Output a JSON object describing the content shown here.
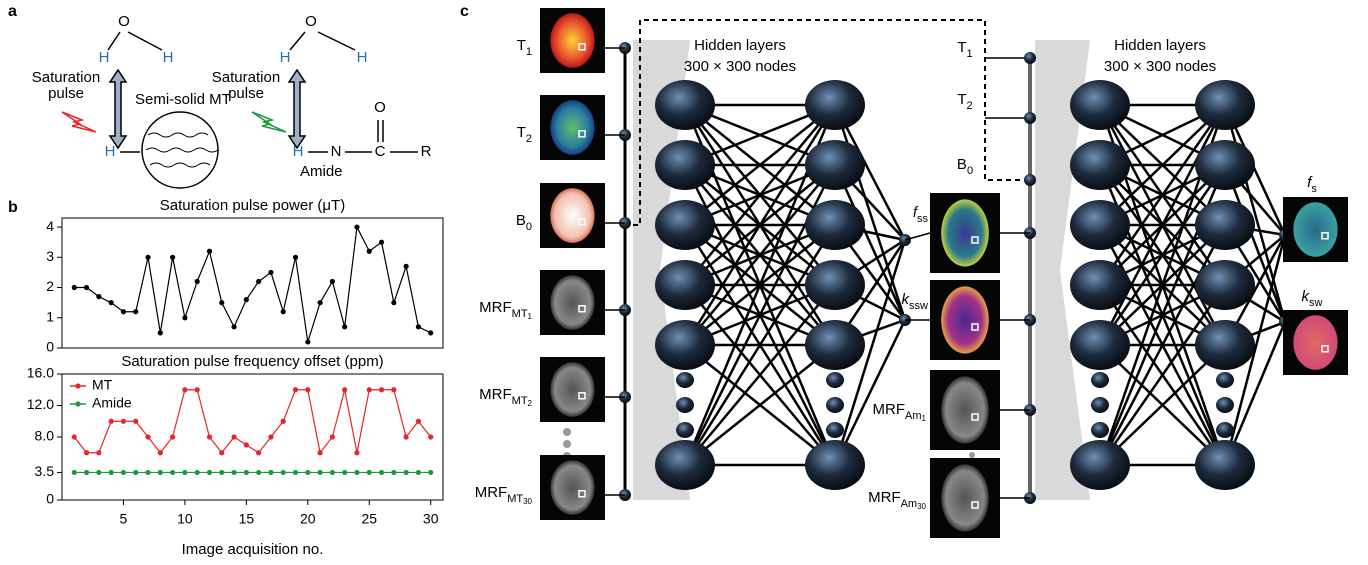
{
  "panel_labels": [
    "a",
    "b",
    "c"
  ],
  "panel_a": {
    "left": {
      "atoms": [
        "O",
        "H",
        "H",
        "H"
      ],
      "pulse_label": [
        "Saturation",
        "pulse"
      ],
      "mt_label": "Semi-solid MT"
    },
    "right": {
      "atoms": [
        "O",
        "H",
        "H",
        "H",
        "N",
        "C",
        "O",
        "R"
      ],
      "pulse_label": [
        "Saturation",
        "pulse"
      ],
      "amide_label": "Amide"
    }
  },
  "chart_data": [
    {
      "type": "line",
      "title": "Saturation pulse power (μT)",
      "x": [
        1,
        2,
        3,
        4,
        5,
        6,
        7,
        8,
        9,
        10,
        11,
        12,
        13,
        14,
        15,
        16,
        17,
        18,
        19,
        20,
        21,
        22,
        23,
        24,
        25,
        26,
        27,
        28,
        29,
        30
      ],
      "series": [
        {
          "color": "#000000",
          "values": [
            2.0,
            2.0,
            1.7,
            1.5,
            1.2,
            1.2,
            3.0,
            0.5,
            3.0,
            1.0,
            2.2,
            3.2,
            1.5,
            0.7,
            1.6,
            2.2,
            2.5,
            1.2,
            3.0,
            0.2,
            1.5,
            2.2,
            0.7,
            4.0,
            3.2,
            3.5,
            1.5,
            2.7,
            0.7,
            0.5
          ]
        }
      ],
      "xlim": [
        0,
        31
      ],
      "ylim": [
        0,
        4.3
      ],
      "yticks": [
        0,
        1,
        2,
        3,
        4
      ]
    },
    {
      "type": "line",
      "title": "Saturation pulse frequency offset (ppm)",
      "xlabel": "Image acquisition no.",
      "x": [
        1,
        2,
        3,
        4,
        5,
        6,
        7,
        8,
        9,
        10,
        11,
        12,
        13,
        14,
        15,
        16,
        17,
        18,
        19,
        20,
        21,
        22,
        23,
        24,
        25,
        26,
        27,
        28,
        29,
        30
      ],
      "series": [
        {
          "name": "MT",
          "color": "#e8262a",
          "values": [
            8,
            6,
            6,
            10,
            10,
            10,
            8,
            6,
            8,
            14,
            14,
            8,
            6,
            8,
            7,
            6,
            8,
            10,
            14,
            14,
            6,
            8,
            14,
            6,
            14,
            14,
            14,
            8,
            10,
            8
          ]
        },
        {
          "name": "Amide",
          "color": "#1a9a3a",
          "values": [
            3.5,
            3.5,
            3.5,
            3.5,
            3.5,
            3.5,
            3.5,
            3.5,
            3.5,
            3.5,
            3.5,
            3.5,
            3.5,
            3.5,
            3.5,
            3.5,
            3.5,
            3.5,
            3.5,
            3.5,
            3.5,
            3.5,
            3.5,
            3.5,
            3.5,
            3.5,
            3.5,
            3.5,
            3.5,
            3.5
          ]
        }
      ],
      "xlim": [
        0,
        31
      ],
      "ylim": [
        0,
        16
      ],
      "xticks": [
        5,
        10,
        15,
        20,
        25,
        30
      ],
      "yticks": [
        0,
        3.5,
        {
          "value": 8,
          "label": "8.0"
        },
        {
          "value": 12,
          "label": "12.0"
        },
        {
          "value": 16,
          "label": "16.0"
        }
      ]
    }
  ],
  "panel_c": {
    "inputs": [
      {
        "text": "T",
        "sub": "1"
      },
      {
        "text": "T",
        "sub": "2"
      },
      {
        "text": "B",
        "sub": "0"
      },
      {
        "text": "MRF",
        "sub": "MT",
        "sub2": "1"
      },
      {
        "text": "MRF",
        "sub": "MT",
        "sub2": "2"
      },
      {
        "text": "MRF",
        "sub": "MT",
        "sub2": "30"
      }
    ],
    "hidden_title": "Hidden layers",
    "hidden_size": "300 × 300 nodes",
    "middle_outputs": [
      {
        "text": "f",
        "sub": "ss"
      },
      {
        "text": "k",
        "sub": "ssw"
      },
      {
        "text": "MRF",
        "sub": "Am",
        "sub2": "1"
      },
      {
        "text": "MRF",
        "sub": "Am",
        "sub2": "30"
      }
    ],
    "second_inputs": [
      {
        "text": "T",
        "sub": "1"
      },
      {
        "text": "T",
        "sub": "2"
      },
      {
        "text": "B",
        "sub": "0"
      }
    ],
    "second_hidden_title": "Hidden layers",
    "second_hidden_size": "300 × 300 nodes",
    "outputs": [
      {
        "text": "f",
        "sub": "s"
      },
      {
        "text": "k",
        "sub": "sw"
      }
    ]
  }
}
